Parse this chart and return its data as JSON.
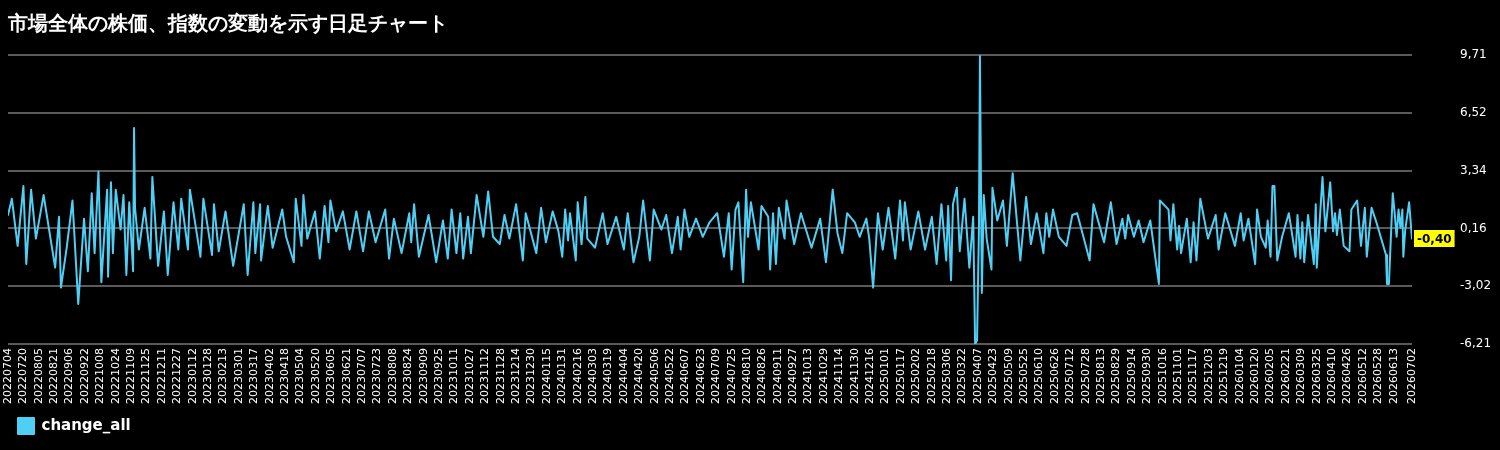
{
  "chart_data": {
    "type": "line",
    "title": "市場全体の株価、指数の変動を示す日足チャート",
    "x": [
      "2022-07-04",
      "2022-07-08",
      "2022-07-14",
      "2022-07-20",
      "2022-07-23",
      "2022-07-28",
      "2022-08-02",
      "2022-08-10",
      "2022-08-22",
      "2022-08-26",
      "2022-08-28",
      "2022-09-03",
      "2022-09-09",
      "2022-09-15",
      "2022-09-21",
      "2022-09-25",
      "2022-09-29",
      "2022-10-02",
      "2022-10-06",
      "2022-10-09",
      "2022-10-15",
      "2022-10-16",
      "2022-10-19",
      "2022-10-21",
      "2022-10-24",
      "2022-10-29",
      "2022-11-01",
      "2022-11-04",
      "2022-11-07",
      "2022-11-11",
      "2022-11-12",
      "2022-11-13",
      "2022-11-17",
      "2022-11-23",
      "2022-11-29",
      "2022-12-01",
      "2022-12-07",
      "2022-12-13",
      "2022-12-17",
      "2022-12-23",
      "2022-12-28",
      "2022-12-31",
      "2023-01-07",
      "2023-01-09",
      "2023-01-20",
      "2023-01-23",
      "2023-02-01",
      "2023-02-03",
      "2023-02-08",
      "2023-02-15",
      "2023-02-23",
      "2023-03-06",
      "2023-03-10",
      "2023-03-16",
      "2023-03-18",
      "2023-03-23",
      "2023-03-24",
      "2023-03-31",
      "2023-04-05",
      "2023-04-15",
      "2023-04-19",
      "2023-04-27",
      "2023-04-29",
      "2023-05-05",
      "2023-05-07",
      "2023-05-11",
      "2023-05-19",
      "2023-05-24",
      "2023-05-29",
      "2023-06-02",
      "2023-06-04",
      "2023-06-10",
      "2023-06-17",
      "2023-06-24",
      "2023-07-01",
      "2023-07-08",
      "2023-07-14",
      "2023-07-21",
      "2023-07-31",
      "2023-08-04",
      "2023-08-09",
      "2023-08-17",
      "2023-08-25",
      "2023-08-27",
      "2023-08-30",
      "2023-09-04",
      "2023-09-14",
      "2023-09-22",
      "2023-09-29",
      "2023-10-04",
      "2023-10-08",
      "2023-10-13",
      "2023-10-17",
      "2023-10-20",
      "2023-10-25",
      "2023-10-28",
      "2023-11-03",
      "2023-11-10",
      "2023-11-15",
      "2023-11-20",
      "2023-11-27",
      "2023-12-02",
      "2023-12-07",
      "2023-12-14",
      "2023-12-21",
      "2023-12-24",
      "2024-01-04",
      "2024-01-09",
      "2024-01-14",
      "2024-01-21",
      "2024-01-27",
      "2024-01-31",
      "2024-02-03",
      "2024-02-06",
      "2024-02-08",
      "2024-02-14",
      "2024-02-16",
      "2024-02-20",
      "2024-02-24",
      "2024-02-26",
      "2024-03-05",
      "2024-03-13",
      "2024-03-18",
      "2024-03-27",
      "2024-04-04",
      "2024-04-08",
      "2024-04-14",
      "2024-04-20",
      "2024-04-24",
      "2024-05-01",
      "2024-05-05",
      "2024-05-13",
      "2024-05-18",
      "2024-05-24",
      "2024-05-30",
      "2024-06-02",
      "2024-06-06",
      "2024-06-11",
      "2024-06-18",
      "2024-06-25",
      "2024-07-02",
      "2024-07-10",
      "2024-07-17",
      "2024-07-22",
      "2024-07-25",
      "2024-07-29",
      "2024-08-01",
      "2024-08-06",
      "2024-08-09",
      "2024-08-11",
      "2024-08-14",
      "2024-08-22",
      "2024-08-25",
      "2024-09-01",
      "2024-09-03",
      "2024-09-06",
      "2024-09-09",
      "2024-09-12",
      "2024-09-18",
      "2024-09-20",
      "2024-09-28",
      "2024-10-05",
      "2024-10-16",
      "2024-10-25",
      "2024-10-31",
      "2024-11-07",
      "2024-11-12",
      "2024-11-17",
      "2024-11-22",
      "2024-11-30",
      "2024-12-05",
      "2024-12-12",
      "2024-12-15",
      "2024-12-19",
      "2024-12-24",
      "2024-12-29",
      "2025-01-04",
      "2025-01-11",
      "2025-01-16",
      "2025-01-19",
      "2025-01-21",
      "2025-01-27",
      "2025-02-04",
      "2025-02-11",
      "2025-02-18",
      "2025-02-23",
      "2025-02-28",
      "2025-03-05",
      "2025-03-07",
      "2025-03-10",
      "2025-03-12",
      "2025-03-16",
      "2025-03-19",
      "2025-03-24",
      "2025-03-29",
      "2025-04-02",
      "2025-04-04",
      "2025-04-06",
      "2025-04-08",
      "2025-04-09",
      "2025-04-11",
      "2025-04-13",
      "2025-04-16",
      "2025-04-21",
      "2025-04-22",
      "2025-04-27",
      "2025-05-03",
      "2025-05-07",
      "2025-05-13",
      "2025-05-21",
      "2025-05-27",
      "2025-06-01",
      "2025-06-07",
      "2025-06-14",
      "2025-06-17",
      "2025-06-20",
      "2025-06-24",
      "2025-06-30",
      "2025-07-08",
      "2025-07-14",
      "2025-07-19",
      "2025-07-26",
      "2025-08-01",
      "2025-08-05",
      "2025-08-16",
      "2025-08-23",
      "2025-08-29",
      "2025-09-04",
      "2025-09-07",
      "2025-09-10",
      "2025-09-16",
      "2025-09-21",
      "2025-09-26",
      "2025-10-03",
      "2025-10-12",
      "2025-10-13",
      "2025-10-22",
      "2025-10-24",
      "2025-10-27",
      "2025-10-31",
      "2025-11-02",
      "2025-11-04",
      "2025-11-10",
      "2025-11-14",
      "2025-11-17",
      "2025-11-20",
      "2025-11-24",
      "2025-12-02",
      "2025-12-10",
      "2025-12-13",
      "2025-12-20",
      "2025-12-30",
      "2026-01-05",
      "2026-01-08",
      "2026-01-13",
      "2026-01-20",
      "2026-01-22",
      "2026-01-26",
      "2026-01-31",
      "2026-02-02",
      "2026-02-05",
      "2026-02-07",
      "2026-02-09",
      "2026-02-12",
      "2026-02-17",
      "2026-02-24",
      "2026-03-03",
      "2026-03-05",
      "2026-03-08",
      "2026-03-10",
      "2026-03-12",
      "2026-03-16",
      "2026-03-22",
      "2026-03-24",
      "2026-03-25",
      "2026-03-31",
      "2026-04-03",
      "2026-04-08",
      "2026-04-11",
      "2026-04-13",
      "2026-04-15",
      "2026-04-18",
      "2026-04-22",
      "2026-04-28",
      "2026-04-30",
      "2026-05-06",
      "2026-05-10",
      "2026-05-14",
      "2026-05-16",
      "2026-05-21",
      "2026-05-26",
      "2026-06-05",
      "2026-06-06",
      "2026-06-08",
      "2026-06-12",
      "2026-06-14",
      "2026-06-16",
      "2026-06-18",
      "2026-06-20",
      "2026-06-22",
      "2026-06-23",
      "2026-06-25",
      "2026-06-29",
      "2026-07-02"
    ],
    "series": [
      {
        "name": "change_all",
        "color": "#50cff5",
        "values": [
          0.9,
          1.8,
          -0.8,
          2.5,
          -1.8,
          2.3,
          -0.4,
          2.0,
          -2.0,
          0.8,
          -3.1,
          -0.9,
          1.7,
          -4.0,
          0.7,
          -2.2,
          2.1,
          -1.2,
          3.3,
          -2.8,
          2.3,
          -2.5,
          2.7,
          -1.2,
          2.3,
          0.1,
          2.0,
          -2.4,
          1.6,
          -2.2,
          5.7,
          1.3,
          -1.0,
          1.3,
          -1.5,
          3.0,
          -1.9,
          1.1,
          -2.4,
          1.6,
          -1.0,
          1.8,
          -1.0,
          2.3,
          -1.4,
          1.8,
          -1.3,
          1.5,
          -1.1,
          1.1,
          -1.9,
          1.5,
          -2.4,
          1.6,
          -1.2,
          1.5,
          -1.6,
          1.4,
          -0.9,
          1.2,
          -0.3,
          -1.7,
          1.8,
          -0.8,
          2.0,
          -0.4,
          1.1,
          -1.5,
          1.4,
          -0.6,
          1.7,
          0.0,
          1.1,
          -1.0,
          1.1,
          -1.1,
          1.1,
          -0.6,
          1.2,
          -1.5,
          0.7,
          -1.2,
          1.0,
          -0.6,
          1.5,
          -1.4,
          0.9,
          -1.7,
          0.6,
          -1.5,
          1.2,
          -1.2,
          1.0,
          -1.5,
          0.8,
          -1.2,
          2.0,
          -0.3,
          2.2,
          -0.3,
          -0.7,
          0.9,
          -0.4,
          1.5,
          -1.6,
          1.0,
          -1.2,
          1.3,
          -0.6,
          1.1,
          0.0,
          -1.4,
          1.2,
          -0.5,
          1.0,
          -1.6,
          1.6,
          -0.7,
          1.9,
          -0.4,
          -0.9,
          1.0,
          -0.7,
          0.8,
          -1.0,
          1.0,
          -1.7,
          -0.3,
          1.7,
          -1.6,
          1.2,
          0.1,
          0.9,
          -1.2,
          0.8,
          -1.0,
          1.2,
          -0.3,
          0.7,
          -0.3,
          0.5,
          1.0,
          -1.4,
          1.0,
          -2.1,
          1.2,
          1.6,
          -2.8,
          2.3,
          -0.3,
          1.6,
          -1.0,
          1.4,
          0.8,
          -2.1,
          1.0,
          -1.8,
          1.3,
          -0.4,
          1.7,
          -0.7,
          1.0,
          -0.9,
          0.7,
          -1.7,
          2.3,
          -0.1,
          -1.2,
          1.0,
          0.5,
          -0.3,
          0.7,
          -0.4,
          -3.1,
          1.0,
          -1.0,
          1.3,
          -1.5,
          1.7,
          -0.5,
          1.6,
          -1.0,
          1.1,
          -1.0,
          0.8,
          -1.8,
          1.5,
          -1.6,
          1.4,
          -2.7,
          1.5,
          2.4,
          -1.1,
          1.8,
          -2.0,
          0.8,
          -6.21,
          -6.0,
          0.2,
          9.71,
          -3.4,
          2.0,
          -0.4,
          -2.1,
          2.4,
          0.6,
          1.7,
          -0.8,
          3.2,
          -1.6,
          1.9,
          -0.7,
          1.0,
          -1.2,
          1.0,
          -0.3,
          1.2,
          -0.3,
          -0.8,
          0.9,
          1.0,
          -0.4,
          -1.6,
          1.5,
          -0.6,
          1.6,
          -0.7,
          0.7,
          -0.4,
          0.9,
          -0.3,
          0.6,
          -0.6,
          0.6,
          -2.9,
          1.7,
          1.2,
          -0.5,
          1.5,
          -1.0,
          0.3,
          -1.2,
          0.7,
          -1.7,
          0.5,
          -1.6,
          1.8,
          -0.4,
          0.9,
          -1.0,
          1.0,
          -0.8,
          1.0,
          -0.5,
          0.7,
          -1.8,
          1.2,
          -0.3,
          -0.9,
          0.6,
          -1.4,
          2.5,
          2.5,
          -1.6,
          -0.3,
          1.0,
          -1.4,
          0.9,
          -1.5,
          0.5,
          -1.7,
          0.9,
          -1.8,
          1.5,
          -2.0,
          3.0,
          0.0,
          2.7,
          0.0,
          1.0,
          -0.2,
          1.2,
          -0.8,
          -1.1,
          1.2,
          1.7,
          -0.8,
          1.3,
          -1.4,
          1.3,
          0.5,
          -1.3,
          -2.9,
          -2.9,
          2.1,
          1.0,
          -0.3,
          1.2,
          0.2,
          1.2,
          -1.4,
          0.1,
          1.6,
          -0.4
        ]
      }
    ],
    "xlim": [
      "2022-07-04",
      "2026-07-02"
    ],
    "xticks": [
      {
        "value": "2022-07-04",
        "label": "20220704"
      },
      {
        "value": "2022-07-20",
        "label": "20220720"
      },
      {
        "value": "2022-08-05",
        "label": "20220805"
      },
      {
        "value": "2022-08-21",
        "label": "20220821"
      },
      {
        "value": "2022-09-06",
        "label": "20220906"
      },
      {
        "value": "2022-09-22",
        "label": "20220922"
      },
      {
        "value": "2022-10-08",
        "label": "20221008"
      },
      {
        "value": "2022-10-24",
        "label": "20221024"
      },
      {
        "value": "2022-11-09",
        "label": "20221109"
      },
      {
        "value": "2022-11-25",
        "label": "20221125"
      },
      {
        "value": "2022-12-11",
        "label": "20221211"
      },
      {
        "value": "2022-12-27",
        "label": "20221227"
      },
      {
        "value": "2023-01-12",
        "label": "20230112"
      },
      {
        "value": "2023-01-28",
        "label": "20230128"
      },
      {
        "value": "2023-02-13",
        "label": "20230213"
      },
      {
        "value": "2023-03-01",
        "label": "20230301"
      },
      {
        "value": "2023-03-17",
        "label": "20230317"
      },
      {
        "value": "2023-04-02",
        "label": "20230402"
      },
      {
        "value": "2023-04-18",
        "label": "20230418"
      },
      {
        "value": "2023-05-04",
        "label": "20230504"
      },
      {
        "value": "2023-05-20",
        "label": "20230520"
      },
      {
        "value": "2023-06-05",
        "label": "20230605"
      },
      {
        "value": "2023-06-21",
        "label": "20230621"
      },
      {
        "value": "2023-07-07",
        "label": "20230707"
      },
      {
        "value": "2023-07-23",
        "label": "20230723"
      },
      {
        "value": "2023-08-08",
        "label": "20230808"
      },
      {
        "value": "2023-08-24",
        "label": "20230824"
      },
      {
        "value": "2023-09-09",
        "label": "20230909"
      },
      {
        "value": "2023-09-25",
        "label": "20230925"
      },
      {
        "value": "2023-10-11",
        "label": "20231011"
      },
      {
        "value": "2023-10-27",
        "label": "20231027"
      },
      {
        "value": "2023-11-12",
        "label": "20231112"
      },
      {
        "value": "2023-11-28",
        "label": "20231128"
      },
      {
        "value": "2023-12-14",
        "label": "20231214"
      },
      {
        "value": "2023-12-30",
        "label": "20231230"
      },
      {
        "value": "2024-01-15",
        "label": "20240115"
      },
      {
        "value": "2024-01-31",
        "label": "20240131"
      },
      {
        "value": "2024-02-16",
        "label": "20240216"
      },
      {
        "value": "2024-03-03",
        "label": "20240303"
      },
      {
        "value": "2024-03-19",
        "label": "20240319"
      },
      {
        "value": "2024-04-04",
        "label": "20240404"
      },
      {
        "value": "2024-04-20",
        "label": "20240420"
      },
      {
        "value": "2024-05-06",
        "label": "20240506"
      },
      {
        "value": "2024-05-22",
        "label": "20240522"
      },
      {
        "value": "2024-06-07",
        "label": "20240607"
      },
      {
        "value": "2024-06-23",
        "label": "20240623"
      },
      {
        "value": "2024-07-09",
        "label": "20240709"
      },
      {
        "value": "2024-07-25",
        "label": "20240725"
      },
      {
        "value": "2024-08-10",
        "label": "20240810"
      },
      {
        "value": "2024-08-26",
        "label": "20240826"
      },
      {
        "value": "2024-09-11",
        "label": "20240911"
      },
      {
        "value": "2024-09-27",
        "label": "20240927"
      },
      {
        "value": "2024-10-13",
        "label": "20241013"
      },
      {
        "value": "2024-10-29",
        "label": "20241029"
      },
      {
        "value": "2024-11-14",
        "label": "20241114"
      },
      {
        "value": "2024-11-30",
        "label": "20241130"
      },
      {
        "value": "2024-12-16",
        "label": "20241216"
      },
      {
        "value": "2025-01-01",
        "label": "20250101"
      },
      {
        "value": "2025-01-17",
        "label": "20250117"
      },
      {
        "value": "2025-02-02",
        "label": "20250202"
      },
      {
        "value": "2025-02-18",
        "label": "20250218"
      },
      {
        "value": "2025-03-06",
        "label": "20250306"
      },
      {
        "value": "2025-03-22",
        "label": "20250322"
      },
      {
        "value": "2025-04-07",
        "label": "20250407"
      },
      {
        "value": "2025-04-23",
        "label": "20250423"
      },
      {
        "value": "2025-05-09",
        "label": "20250509"
      },
      {
        "value": "2025-05-25",
        "label": "20250525"
      },
      {
        "value": "2025-06-10",
        "label": "20250610"
      },
      {
        "value": "2025-06-26",
        "label": "20250626"
      },
      {
        "value": "2025-07-12",
        "label": "20250712"
      },
      {
        "value": "2025-07-28",
        "label": "20250728"
      },
      {
        "value": "2025-08-13",
        "label": "20250813"
      },
      {
        "value": "2025-08-29",
        "label": "20250829"
      },
      {
        "value": "2025-09-14",
        "label": "20250914"
      },
      {
        "value": "2025-09-30",
        "label": "20250930"
      },
      {
        "value": "2025-10-16",
        "label": "20251016"
      },
      {
        "value": "2025-11-01",
        "label": "20251101"
      },
      {
        "value": "2025-11-17",
        "label": "20251117"
      },
      {
        "value": "2025-12-03",
        "label": "20251203"
      },
      {
        "value": "2025-12-19",
        "label": "20251219"
      },
      {
        "value": "2026-01-04",
        "label": "20260104"
      },
      {
        "value": "2026-01-20",
        "label": "20260120"
      },
      {
        "value": "2026-02-05",
        "label": "20260205"
      },
      {
        "value": "2026-02-21",
        "label": "20260221"
      },
      {
        "value": "2026-03-09",
        "label": "20260309"
      },
      {
        "value": "2026-03-25",
        "label": "20260325"
      },
      {
        "value": "2026-04-10",
        "label": "20260410"
      },
      {
        "value": "2026-04-26",
        "label": "20260426"
      },
      {
        "value": "2026-05-12",
        "label": "20260512"
      },
      {
        "value": "2026-05-28",
        "label": "20260528"
      },
      {
        "value": "2026-06-13",
        "label": "20260613"
      },
      {
        "value": "2026-07-02",
        "label": "20260702"
      }
    ],
    "ylim": [
      -6.21,
      9.71
    ],
    "yticks": [
      {
        "value": -6.21,
        "label": "-6,21"
      },
      {
        "value": -3.02,
        "label": "-3,02"
      },
      {
        "value": 0.16,
        "label": "0,16"
      },
      {
        "value": 3.34,
        "label": "3,34"
      },
      {
        "value": 6.52,
        "label": "6,52"
      },
      {
        "value": 9.71,
        "label": "9,71"
      }
    ],
    "grid": "y",
    "legend": "bottom left",
    "annotations": [
      {
        "text": "-0,40",
        "x": "2026-07-02",
        "y": -0.4
      }
    ]
  }
}
